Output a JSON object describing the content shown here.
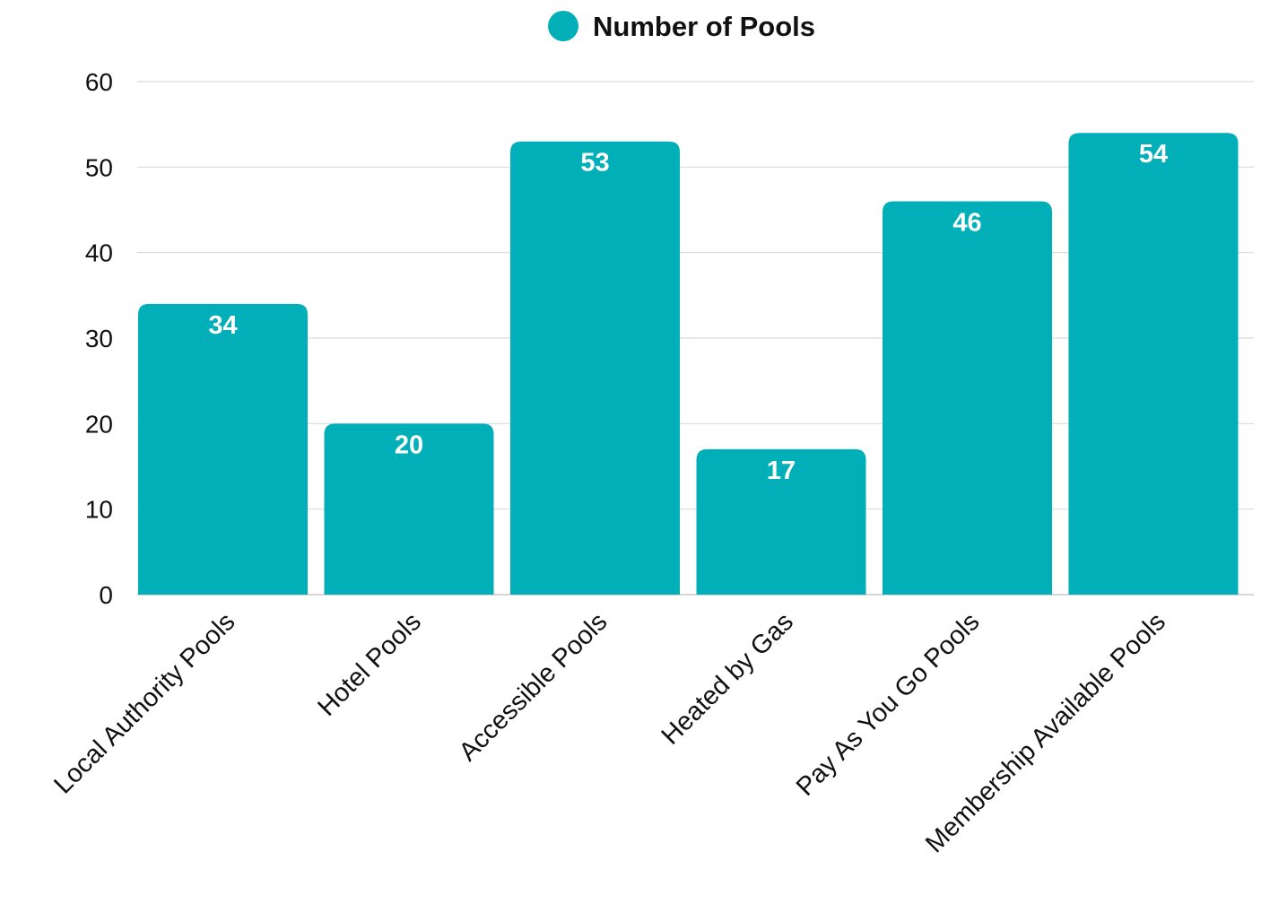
{
  "chart_data": {
    "type": "bar",
    "categories": [
      "Local Authority Pools",
      "Hotel Pools",
      "Accessible Pools",
      "Heated by Gas",
      "Pay As You Go Pools",
      "Membership Available Pools"
    ],
    "series": [
      {
        "name": "Number of Pools",
        "values": [
          34,
          20,
          53,
          17,
          46,
          54
        ]
      }
    ],
    "ylim": [
      0,
      60
    ],
    "yticks": [
      0,
      10,
      20,
      30,
      40,
      50,
      60
    ],
    "grid": true,
    "legend": "top-center",
    "data_labels": true,
    "colors": {
      "bar": "#00AFB8",
      "grid": "#D9D9D9",
      "text": "#111111"
    }
  }
}
